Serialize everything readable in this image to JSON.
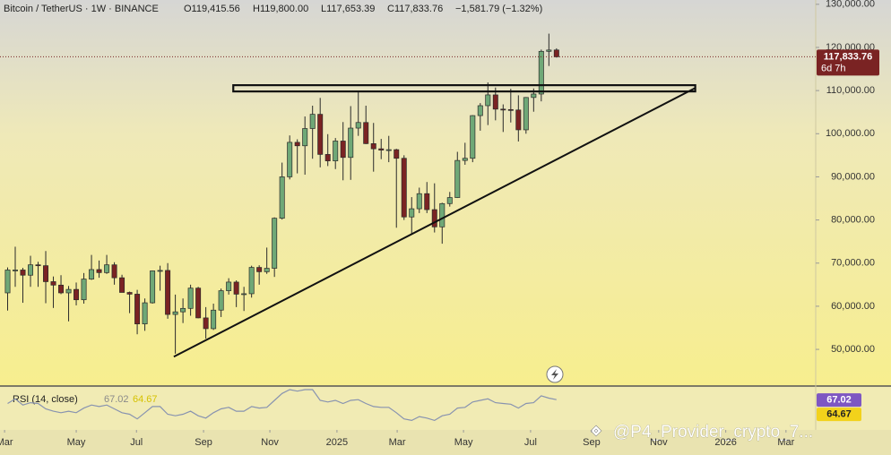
{
  "chart_data": {
    "type": "candlestick",
    "title": "Bitcoin / TetherUS · 1W · BINANCE",
    "ohlc_labels": [
      "O119,415.56",
      "H119,800.00",
      "L117,653.39",
      "C117,833.76"
    ],
    "change_label": "−1,581.79 (−1.32%)",
    "open": [
      63100,
      68400,
      68400,
      67200,
      69600,
      69400,
      65700,
      64900,
      63100,
      63900,
      61500,
      66300,
      68500,
      67800,
      69600,
      66600,
      63200,
      62800,
      55900,
      60800,
      68200,
      68300,
      58100,
      58700,
      59500,
      64200,
      57300,
      54800,
      59100,
      63600,
      65600,
      62800,
      62900,
      69000,
      68000,
      68800,
      80400,
      90000,
      98000,
      97200,
      101200,
      104500,
      95200,
      93700,
      98300,
      94500,
      101300,
      102600,
      97700,
      96500,
      96200,
      96300,
      94300,
      80700,
      82600,
      86100,
      82400,
      78400,
      83800,
      85200,
      93800,
      94300,
      104200,
      106500,
      109000,
      105700,
      105600,
      105500,
      100900,
      108400,
      109200,
      119100,
      119415.56
    ],
    "high": [
      69000,
      73800,
      68900,
      71700,
      70300,
      72800,
      66900,
      67200,
      64700,
      65500,
      67700,
      71900,
      70600,
      71900,
      70200,
      67300,
      63400,
      63800,
      61800,
      68300,
      69400,
      70000,
      62700,
      61800,
      65000,
      64500,
      59800,
      60600,
      64100,
      66500,
      66000,
      64500,
      69400,
      69500,
      73600,
      80600,
      93300,
      99600,
      98700,
      104000,
      106500,
      108300,
      99900,
      99000,
      102700,
      106400,
      109600,
      106500,
      102500,
      98800,
      99500,
      96500,
      95000,
      85300,
      87500,
      88800,
      88500,
      84000,
      86500,
      95800,
      97900,
      104300,
      107100,
      111900,
      110700,
      106800,
      110400,
      108900,
      108500,
      110500,
      119500,
      123200,
      119800
    ],
    "low": [
      59000,
      64500,
      60800,
      64500,
      64500,
      60700,
      59600,
      62800,
      56500,
      60200,
      60600,
      66100,
      66600,
      67500,
      65000,
      63400,
      58400,
      53500,
      54300,
      60600,
      63600,
      57100,
      49000,
      56100,
      57800,
      57200,
      52500,
      54500,
      57500,
      62700,
      59800,
      58900,
      62000,
      65000,
      67500,
      66800,
      80100,
      89400,
      90800,
      90500,
      94200,
      92200,
      92500,
      91800,
      89200,
      89300,
      99500,
      97600,
      91200,
      94100,
      93400,
      78200,
      80000,
      76600,
      81600,
      81600,
      77100,
      74500,
      83100,
      85100,
      92800,
      93400,
      100700,
      102000,
      103100,
      100400,
      102600,
      98200,
      100000,
      105100,
      107500,
      115700,
      117653.39
    ],
    "close": [
      68400,
      68400,
      67200,
      69600,
      69400,
      65700,
      64900,
      63100,
      63900,
      61500,
      66300,
      68500,
      67800,
      69600,
      66600,
      63200,
      62800,
      55900,
      60800,
      68200,
      68300,
      58100,
      58700,
      59500,
      64200,
      57300,
      54800,
      59100,
      63600,
      65600,
      62800,
      62900,
      69000,
      68000,
      68800,
      80400,
      90000,
      98000,
      97200,
      101200,
      104500,
      95200,
      93700,
      98300,
      94500,
      101300,
      102600,
      97700,
      96500,
      96200,
      96300,
      94300,
      80700,
      82600,
      86100,
      82400,
      78400,
      83800,
      85200,
      93800,
      94300,
      104200,
      106500,
      109000,
      105700,
      105600,
      105500,
      100900,
      108400,
      109200,
      119100,
      119400,
      117833.76
    ],
    "up_color": "#6fa877",
    "down_color": "#7a2323",
    "last_price_label": "117,833.76",
    "countdown": "6d 7h",
    "ylim": [
      41500,
      131000
    ],
    "yticks": [
      {
        "value": 50000,
        "label": "50,000.00"
      },
      {
        "value": 60000,
        "label": "60,000.00"
      },
      {
        "value": 70000,
        "label": "70,000.00"
      },
      {
        "value": 80000,
        "label": "80,000.00"
      },
      {
        "value": 90000,
        "label": "90,000.00"
      },
      {
        "value": 100000,
        "label": "100,000.00"
      },
      {
        "value": 110000,
        "label": "110,000.00"
      },
      {
        "value": 120000,
        "label": "120,000.00"
      },
      {
        "value": 130000,
        "label": "130,000.00"
      }
    ],
    "xlim": [
      -1,
      106
    ],
    "xticks": [
      {
        "value": -0.4,
        "label": "Mar"
      },
      {
        "value": 9.0,
        "label": "May"
      },
      {
        "value": 16.9,
        "label": "Jul"
      },
      {
        "value": 25.7,
        "label": "Sep"
      },
      {
        "value": 34.4,
        "label": "Nov"
      },
      {
        "value": 43.2,
        "label": "2025"
      },
      {
        "value": 51.1,
        "label": "Mar"
      },
      {
        "value": 59.8,
        "label": "May"
      },
      {
        "value": 68.6,
        "label": "Jul"
      },
      {
        "value": 76.6,
        "label": "Sep"
      },
      {
        "value": 85.4,
        "label": "Nov"
      },
      {
        "value": 94.2,
        "label": "2026"
      },
      {
        "value": 102.1,
        "label": "Mar"
      }
    ],
    "drawings": {
      "rectangle": {
        "x": [
          29.6,
          90.2
        ],
        "y": [
          109800,
          111250
        ]
      },
      "trendline": {
        "x": [
          21.8,
          90.2
        ],
        "y": [
          48300,
          110600
        ]
      }
    },
    "rsi": {
      "name": "RSI (14, close)",
      "color": "#8893b0",
      "ylim": [
        30,
        80
      ],
      "values": [
        62,
        68,
        60,
        63,
        62,
        55,
        52,
        50,
        52,
        50,
        56,
        60,
        58,
        60,
        55,
        50,
        48,
        42,
        50,
        58,
        58,
        48,
        46,
        48,
        52,
        46,
        43,
        50,
        55,
        57,
        52,
        52,
        58,
        56,
        57,
        66,
        75,
        80,
        78,
        80,
        80,
        66,
        64,
        66,
        62,
        66,
        67,
        62,
        58,
        57,
        57,
        50,
        42,
        40,
        45,
        43,
        40,
        46,
        48,
        56,
        57,
        64,
        66,
        68,
        63,
        62,
        61,
        56,
        62,
        63,
        72,
        69,
        67.02
      ],
      "ma_value": 64.67
    }
  },
  "watermark": "@P4_Provider_crypto_7..."
}
